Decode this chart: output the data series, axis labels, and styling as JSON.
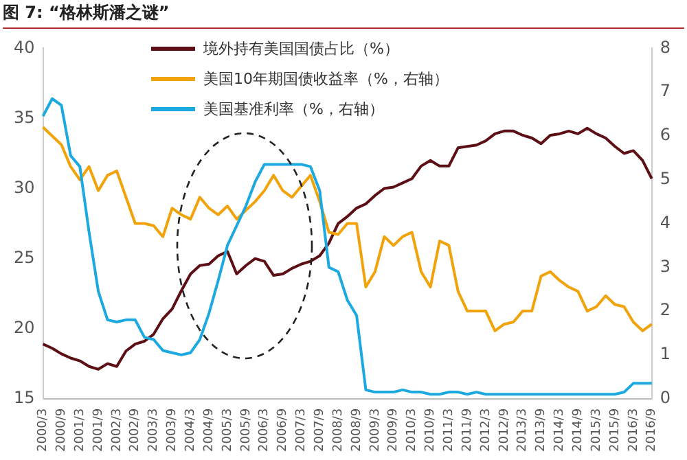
{
  "chart_data": {
    "type": "line",
    "title": "图 7: “格林斯潘之谜”",
    "categories": [
      "2000/3",
      null,
      "2000/9",
      null,
      "2001/3",
      null,
      "2001/9",
      null,
      "2002/3",
      null,
      "2002/9",
      null,
      "2003/3",
      null,
      "2003/9",
      null,
      "2004/3",
      null,
      "2004/9",
      null,
      "2005/3",
      null,
      "2005/9",
      null,
      "2006/3",
      null,
      "2006/9",
      null,
      "2007/3",
      null,
      "2007/9",
      null,
      "2008/3",
      null,
      "2008/9",
      null,
      "2009/3",
      null,
      "2009/9",
      null,
      "2010/3",
      null,
      "2010/9",
      null,
      "2011/3",
      null,
      "2011/9",
      null,
      "2012/3",
      null,
      "2012/9",
      null,
      "2013/3",
      null,
      "2013/9",
      null,
      "2014/3",
      null,
      "2014/9",
      null,
      "2015/3",
      null,
      "2015/9",
      null,
      "2016/3",
      null,
      "2016/9"
    ],
    "series": [
      {
        "name": "境外持有美国国债占比（%）",
        "color": "#5c0f14",
        "values": [
          18.9,
          18.6,
          18.2,
          17.9,
          17.7,
          17.3,
          17.1,
          17.5,
          17.3,
          18.4,
          18.9,
          19.1,
          19.6,
          20.7,
          21.4,
          22.7,
          23.9,
          24.5,
          24.6,
          25.2,
          25.5,
          23.9,
          24.5,
          25.0,
          24.8,
          23.8,
          23.9,
          24.3,
          24.6,
          24.8,
          25.2,
          26.1,
          27.5,
          28.0,
          28.6,
          28.9,
          29.5,
          30.0,
          30.1,
          30.4,
          30.7,
          31.6,
          32.0,
          31.6,
          31.6,
          32.9,
          33.0,
          33.1,
          33.4,
          33.9,
          34.1,
          34.1,
          33.8,
          33.6,
          33.2,
          33.8,
          33.9,
          34.1,
          33.9,
          34.3,
          33.9,
          33.6,
          33.0,
          32.5,
          32.7,
          32.0,
          30.7
        ]
      },
      {
        "name": "美国10年期国债收益率（%，右轴）",
        "color": "#f0a30a",
        "axis": "y2",
        "values": [
          6.2,
          6.0,
          5.8,
          5.3,
          5.0,
          5.3,
          4.75,
          5.1,
          5.2,
          4.6,
          4.0,
          4.0,
          3.95,
          3.7,
          4.35,
          4.2,
          4.1,
          4.6,
          4.35,
          4.2,
          4.4,
          4.1,
          4.3,
          4.5,
          4.75,
          5.1,
          4.75,
          4.6,
          4.85,
          5.1,
          4.5,
          3.8,
          3.75,
          4.0,
          4.0,
          2.55,
          2.9,
          3.7,
          3.5,
          3.7,
          3.8,
          2.9,
          2.55,
          3.6,
          3.5,
          2.45,
          2.0,
          2.0,
          2.0,
          1.55,
          1.7,
          1.75,
          2.0,
          2.0,
          2.8,
          2.9,
          2.7,
          2.55,
          2.45,
          2.0,
          2.1,
          2.35,
          2.15,
          2.1,
          1.75,
          1.55,
          1.7
        ]
      },
      {
        "name": "美国基准利率（%，右轴）",
        "color": "#1ba9e0",
        "axis": "y2",
        "values": [
          6.45,
          6.85,
          6.7,
          5.55,
          5.3,
          3.8,
          2.45,
          1.8,
          1.75,
          1.8,
          1.8,
          1.4,
          1.35,
          1.1,
          1.05,
          1.0,
          1.05,
          1.35,
          1.95,
          2.7,
          3.5,
          3.95,
          4.4,
          4.95,
          5.35,
          5.35,
          5.35,
          5.35,
          5.35,
          5.3,
          4.75,
          3.0,
          2.9,
          2.25,
          1.9,
          0.2,
          0.15,
          0.15,
          0.15,
          0.2,
          0.15,
          0.15,
          0.1,
          0.1,
          0.15,
          0.15,
          0.1,
          0.15,
          0.1,
          0.1,
          0.1,
          0.1,
          0.1,
          0.1,
          0.1,
          0.1,
          0.1,
          0.1,
          0.1,
          0.1,
          0.1,
          0.1,
          0.1,
          0.15,
          0.35,
          0.35,
          0.35
        ]
      }
    ],
    "ylim": [
      15,
      40
    ],
    "yticks": [
      15,
      20,
      25,
      30,
      35,
      40
    ],
    "y2lim": [
      0,
      8
    ],
    "y2ticks": [
      0,
      1,
      2,
      3,
      4,
      5,
      6,
      7,
      8
    ],
    "legend": "top",
    "grid": false,
    "marker": "none",
    "line_style": "solid"
  }
}
